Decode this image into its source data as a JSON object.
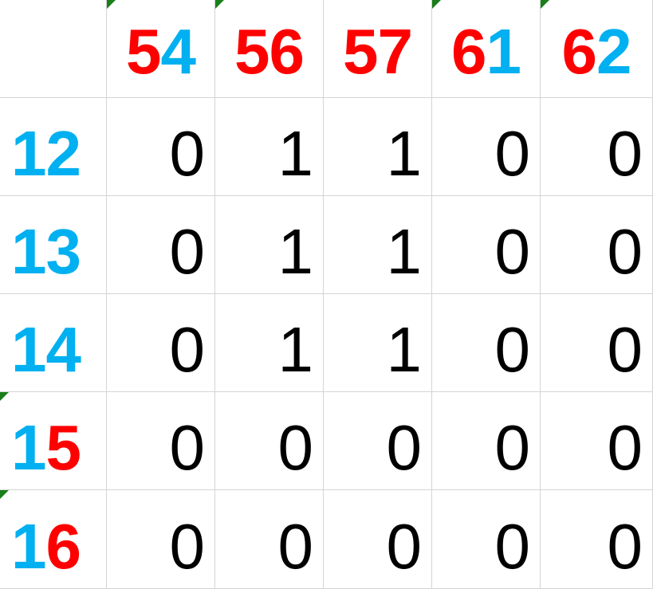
{
  "colors": {
    "red": "#ff0000",
    "blue": "#00b0f0",
    "value": "#000000",
    "gridline": "#d4d4d4",
    "error_marker": "#1a7f1a"
  },
  "column_headers": [
    {
      "d1": "5",
      "d1_color": "#ff0000",
      "d2": "4",
      "d2_color": "#00b0f0",
      "marker": true
    },
    {
      "d1": "5",
      "d1_color": "#ff0000",
      "d2": "6",
      "d2_color": "#ff0000",
      "marker": true
    },
    {
      "d1": "5",
      "d1_color": "#ff0000",
      "d2": "7",
      "d2_color": "#ff0000",
      "marker": false
    },
    {
      "d1": "6",
      "d1_color": "#ff0000",
      "d2": "1",
      "d2_color": "#00b0f0",
      "marker": true
    },
    {
      "d1": "6",
      "d1_color": "#ff0000",
      "d2": "2",
      "d2_color": "#00b0f0",
      "marker": true
    }
  ],
  "rows": [
    {
      "h1": "1",
      "h1_color": "#00b0f0",
      "h2": "2",
      "h2_color": "#00b0f0",
      "marker": false,
      "values": [
        "0",
        "1",
        "1",
        "0",
        "0"
      ]
    },
    {
      "h1": "1",
      "h1_color": "#00b0f0",
      "h2": "3",
      "h2_color": "#00b0f0",
      "marker": false,
      "values": [
        "0",
        "1",
        "1",
        "0",
        "0"
      ]
    },
    {
      "h1": "1",
      "h1_color": "#00b0f0",
      "h2": "4",
      "h2_color": "#00b0f0",
      "marker": false,
      "values": [
        "0",
        "1",
        "1",
        "0",
        "0"
      ]
    },
    {
      "h1": "1",
      "h1_color": "#00b0f0",
      "h2": "5",
      "h2_color": "#ff0000",
      "marker": true,
      "values": [
        "0",
        "0",
        "0",
        "0",
        "0"
      ]
    },
    {
      "h1": "1",
      "h1_color": "#00b0f0",
      "h2": "6",
      "h2_color": "#ff0000",
      "marker": true,
      "values": [
        "0",
        "0",
        "0",
        "0",
        "0"
      ]
    }
  ]
}
